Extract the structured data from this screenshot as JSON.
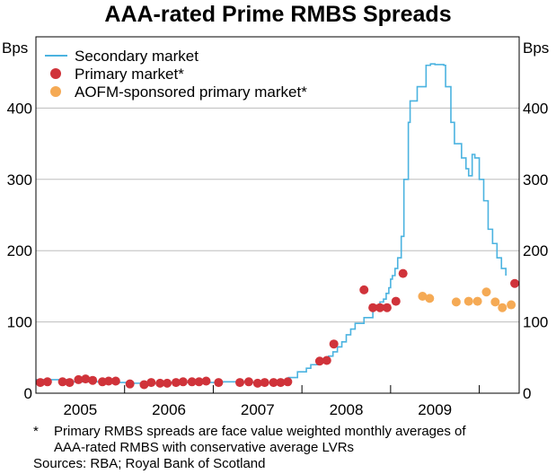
{
  "chart_data": {
    "type": "line+scatter",
    "title": "AAA-rated Prime RMBS Spreads",
    "ylabel_left": "Bps",
    "ylabel_right": "Bps",
    "ylim": [
      0,
      500
    ],
    "yticks": [
      0,
      100,
      200,
      300,
      400
    ],
    "xlim": [
      2004.5,
      2009.95
    ],
    "year_labels": [
      "2005",
      "2006",
      "2007",
      "2008",
      "2009"
    ],
    "year_label_positions": [
      2005,
      2006,
      2007,
      2008,
      2009
    ],
    "year_boundaries": [
      2005.5,
      2006.5,
      2007.5,
      2008.5,
      2009.5
    ],
    "colors": {
      "secondary": "#4bb3e0",
      "primary": "#d0333a",
      "aofm": "#f5aa55",
      "grid": "#bdbdbd"
    },
    "legend": {
      "position": "top-left",
      "entries": [
        {
          "label": "Secondary market",
          "marker": "line",
          "series": "secondary"
        },
        {
          "label": "Primary market*",
          "marker": "dot",
          "series": "primary"
        },
        {
          "label": "AOFM-sponsored primary market*",
          "marker": "dot",
          "series": "aofm"
        }
      ]
    },
    "series": [
      {
        "name": "Secondary market",
        "kind": "line",
        "x": [
          2004.5,
          2004.9,
          2005.3,
          2005.6,
          2005.9,
          2006.3,
          2006.6,
          2006.9,
          2007.2,
          2007.3,
          2007.35,
          2007.45,
          2007.55,
          2007.6,
          2007.7,
          2007.8,
          2007.85,
          2007.9,
          2007.95,
          2008.0,
          2008.05,
          2008.1,
          2008.2,
          2008.3,
          2008.38,
          2008.42,
          2008.45,
          2008.48,
          2008.5,
          2008.52,
          2008.55,
          2008.58,
          2008.62,
          2008.65,
          2008.7,
          2008.72,
          2008.8,
          2008.9,
          2008.95,
          2009.0,
          2009.05,
          2009.1,
          2009.12,
          2009.18,
          2009.22,
          2009.3,
          2009.35,
          2009.38,
          2009.42,
          2009.45,
          2009.5,
          2009.55,
          2009.6,
          2009.65,
          2009.7,
          2009.75,
          2009.8
        ],
        "values": [
          19,
          16,
          15,
          14,
          15,
          15,
          16,
          15,
          14,
          16,
          22,
          30,
          35,
          40,
          48,
          52,
          58,
          65,
          72,
          82,
          90,
          98,
          106,
          118,
          128,
          132,
          140,
          148,
          160,
          165,
          175,
          190,
          220,
          300,
          380,
          410,
          430,
          460,
          462,
          461,
          461,
          460,
          430,
          380,
          350,
          330,
          315,
          305,
          335,
          330,
          300,
          270,
          230,
          210,
          190,
          175,
          165
        ]
      },
      {
        "name": "Primary market*",
        "kind": "scatter",
        "x": [
          2004.55,
          2004.63,
          2004.8,
          2004.88,
          2004.98,
          2005.06,
          2005.14,
          2005.25,
          2005.32,
          2005.4,
          2005.56,
          2005.72,
          2005.8,
          2005.9,
          2005.98,
          2006.08,
          2006.16,
          2006.26,
          2006.34,
          2006.42,
          2006.56,
          2006.8,
          2006.9,
          2007.0,
          2007.08,
          2007.18,
          2007.26,
          2007.34,
          2007.7,
          2007.78,
          2007.86,
          2008.2,
          2008.3,
          2008.38,
          2008.46,
          2008.56,
          2008.64,
          2009.9
        ],
        "values": [
          15,
          16,
          16,
          15,
          19,
          20,
          18,
          16,
          17,
          17,
          13,
          12,
          15,
          14,
          14,
          15,
          16,
          16,
          16,
          17,
          15,
          15,
          16,
          14,
          15,
          15,
          15,
          16,
          45,
          46,
          69,
          145,
          120,
          120,
          120,
          129,
          168,
          154
        ]
      },
      {
        "name": "AOFM-sponsored primary market*",
        "kind": "scatter",
        "x": [
          2008.86,
          2008.94,
          2009.24,
          2009.38,
          2009.48,
          2009.58,
          2009.68,
          2009.76,
          2009.86
        ],
        "values": [
          136,
          133,
          128,
          129,
          129,
          142,
          128,
          120,
          124
        ]
      }
    ]
  },
  "footnotes": {
    "star": "*",
    "line1": "Primary RMBS spreads are face value weighted monthly averages of",
    "line2": "AAA-rated RMBS with conservative average LVRs",
    "sources": "Sources: RBA; Royal Bank of Scotland"
  }
}
